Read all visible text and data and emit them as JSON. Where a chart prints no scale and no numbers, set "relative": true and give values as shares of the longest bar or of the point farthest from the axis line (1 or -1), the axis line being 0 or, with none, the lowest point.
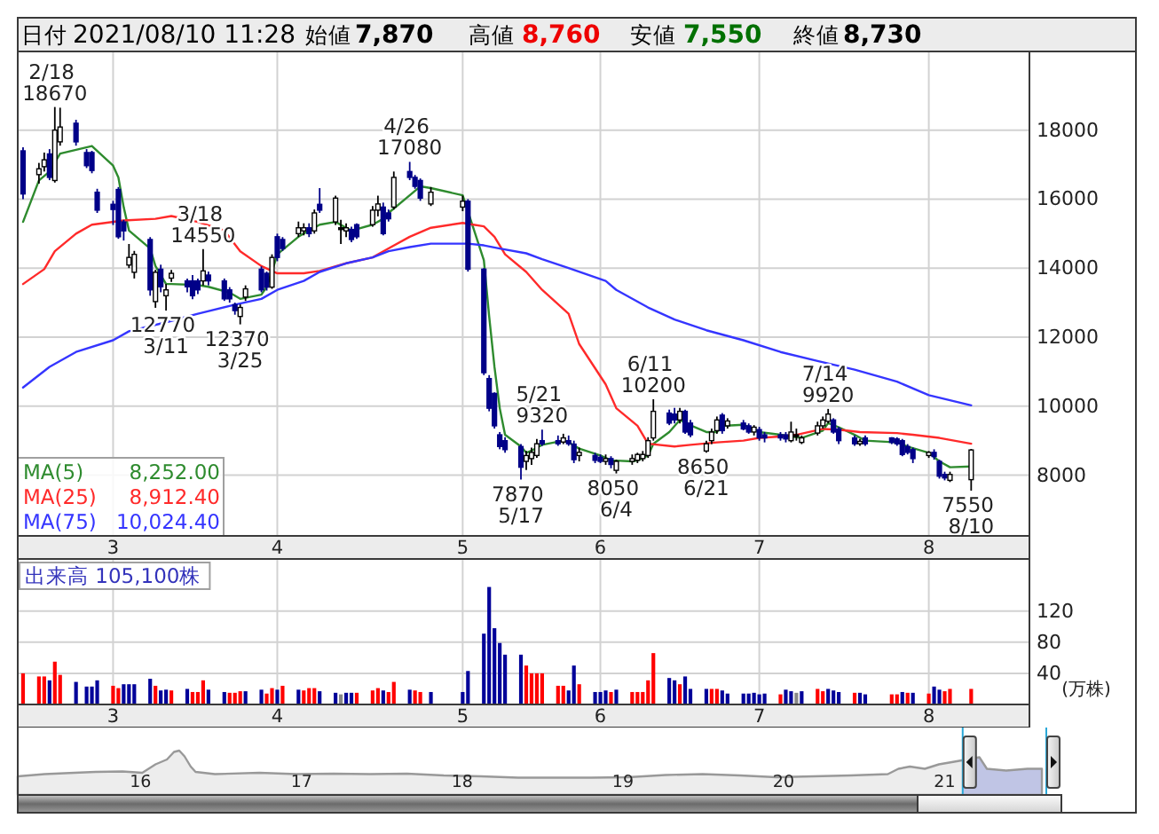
{
  "chart_data": [
    {
      "type": "other",
      "annotations": [
        "日付",
        "2021/08/10 11:28",
        "始値",
        "7,870",
        "高値",
        "8,760",
        "安値",
        "7,550",
        "終値",
        "8,730"
      ]
    },
    {
      "type": "candlestick",
      "x": [
        "2021-02-12",
        "2021-02-15",
        "2021-02-16",
        "2021-02-17",
        "2021-02-18",
        "2021-02-19",
        "2021-02-22",
        "2021-02-24",
        "2021-02-25",
        "2021-02-26",
        "2021-03-01",
        "2021-03-02",
        "2021-03-03",
        "2021-03-04",
        "2021-03-05",
        "2021-03-08",
        "2021-03-09",
        "2021-03-10",
        "2021-03-11",
        "2021-03-12",
        "2021-03-15",
        "2021-03-16",
        "2021-03-17",
        "2021-03-18",
        "2021-03-19",
        "2021-03-22",
        "2021-03-23",
        "2021-03-24",
        "2021-03-25",
        "2021-03-26",
        "2021-03-29",
        "2021-03-30",
        "2021-03-31",
        "2021-04-01",
        "2021-04-02",
        "2021-04-05",
        "2021-04-06",
        "2021-04-07",
        "2021-04-08",
        "2021-04-09",
        "2021-04-12",
        "2021-04-13",
        "2021-04-14",
        "2021-04-15",
        "2021-04-16",
        "2021-04-19",
        "2021-04-20",
        "2021-04-21",
        "2021-04-22",
        "2021-04-23",
        "2021-04-26",
        "2021-04-27",
        "2021-04-28",
        "2021-04-30",
        "2021-05-06",
        "2021-05-07",
        "2021-05-10",
        "2021-05-11",
        "2021-05-12",
        "2021-05-13",
        "2021-05-14",
        "2021-05-17",
        "2021-05-18",
        "2021-05-19",
        "2021-05-20",
        "2021-05-21",
        "2021-05-24",
        "2021-05-25",
        "2021-05-26",
        "2021-05-27",
        "2021-05-28",
        "2021-05-31",
        "2021-06-01",
        "2021-06-02",
        "2021-06-03",
        "2021-06-04",
        "2021-06-07",
        "2021-06-08",
        "2021-06-09",
        "2021-06-10",
        "2021-06-11",
        "2021-06-14",
        "2021-06-15",
        "2021-06-16",
        "2021-06-17",
        "2021-06-18",
        "2021-06-21",
        "2021-06-22",
        "2021-06-23",
        "2021-06-24",
        "2021-06-25",
        "2021-06-28",
        "2021-06-29",
        "2021-06-30",
        "2021-07-01",
        "2021-07-02",
        "2021-07-05",
        "2021-07-06",
        "2021-07-07",
        "2021-07-08",
        "2021-07-09",
        "2021-07-12",
        "2021-07-13",
        "2021-07-14",
        "2021-07-15",
        "2021-07-16",
        "2021-07-19",
        "2021-07-20",
        "2021-07-21",
        "2021-07-26",
        "2021-07-27",
        "2021-07-28",
        "2021-07-29",
        "2021-07-30",
        "2021-08-02",
        "2021-08-03",
        "2021-08-04",
        "2021-08-05",
        "2021-08-06",
        "2021-08-10"
      ],
      "ohlc": [
        [
          17400,
          17500,
          16000,
          16150
        ],
        [
          16710,
          17050,
          16450,
          16880
        ],
        [
          16940,
          17350,
          16800,
          17140
        ],
        [
          17310,
          17450,
          16550,
          16630
        ],
        [
          16540,
          18670,
          16480,
          18000
        ],
        [
          17660,
          18650,
          17550,
          18090
        ],
        [
          18200,
          18300,
          17550,
          17660
        ],
        [
          17350,
          17450,
          16900,
          16970
        ],
        [
          17350,
          17400,
          16750,
          16830
        ],
        [
          16200,
          16300,
          15600,
          15680
        ],
        [
          15850,
          15950,
          15250,
          15700
        ],
        [
          16280,
          16350,
          14850,
          14910
        ],
        [
          15340,
          15400,
          14800,
          15080
        ],
        [
          14090,
          14700,
          14000,
          14310
        ],
        [
          13880,
          14500,
          13700,
          14400
        ],
        [
          14830,
          14900,
          13200,
          13370
        ],
        [
          13030,
          13950,
          12850,
          13880
        ],
        [
          13970,
          14100,
          13300,
          13460
        ],
        [
          13200,
          13540,
          12770,
          13370
        ],
        [
          13710,
          13950,
          13600,
          13850
        ],
        [
          13630,
          13700,
          13300,
          13460
        ],
        [
          13630,
          13800,
          13100,
          13200
        ],
        [
          13630,
          13700,
          13250,
          13370
        ],
        [
          13630,
          14550,
          13500,
          13920
        ],
        [
          13800,
          13900,
          13500,
          13630
        ],
        [
          13630,
          13700,
          13050,
          13110
        ],
        [
          13370,
          13450,
          13000,
          13110
        ],
        [
          12940,
          13000,
          12650,
          12770
        ],
        [
          12600,
          12950,
          12370,
          12860
        ],
        [
          13160,
          13500,
          13050,
          13400
        ],
        [
          13970,
          14050,
          13300,
          13370
        ],
        [
          13850,
          13900,
          13350,
          13450
        ],
        [
          13450,
          14400,
          13400,
          14310
        ],
        [
          14910,
          15000,
          14200,
          14310
        ],
        [
          14830,
          14900,
          14500,
          14570
        ],
        [
          15000,
          15350,
          14900,
          15170
        ],
        [
          15080,
          15300,
          14950,
          15170
        ],
        [
          15170,
          15300,
          14900,
          15000
        ],
        [
          15080,
          15700,
          15000,
          15600
        ],
        [
          15850,
          16320,
          15600,
          15680
        ],
        [
          15340,
          16100,
          15250,
          16030
        ],
        [
          15170,
          15400,
          14700,
          15170
        ],
        [
          15080,
          15300,
          14900,
          15170
        ],
        [
          15120,
          15200,
          14750,
          14830
        ],
        [
          15260,
          15300,
          14850,
          14910
        ],
        [
          15260,
          15800,
          15200,
          15680
        ],
        [
          15680,
          16100,
          15500,
          15860
        ],
        [
          15770,
          15900,
          14950,
          15000
        ],
        [
          15600,
          15700,
          15350,
          15430
        ],
        [
          15770,
          16800,
          15700,
          16630
        ],
        [
          16800,
          17080,
          16550,
          16630
        ],
        [
          16630,
          16700,
          16300,
          16370
        ],
        [
          16540,
          16600,
          15950,
          16030
        ],
        [
          15860,
          16350,
          15800,
          16200
        ],
        [
          15770,
          16100,
          15650,
          15940
        ],
        [
          15940,
          16000,
          13900,
          13970
        ],
        [
          13970,
          14000,
          10900,
          10970
        ],
        [
          10800,
          10900,
          9850,
          9940
        ],
        [
          10370,
          10400,
          9350,
          9430
        ],
        [
          9170,
          9250,
          8750,
          8830
        ],
        [
          9000,
          9100,
          8650,
          8740
        ],
        [
          8830,
          8900,
          7870,
          8230
        ],
        [
          8400,
          8700,
          8150,
          8570
        ],
        [
          8480,
          8800,
          8300,
          8660
        ],
        [
          8570,
          9050,
          8500,
          8910
        ],
        [
          9000,
          9320,
          8850,
          8910
        ],
        [
          9000,
          9150,
          8850,
          8910
        ],
        [
          8960,
          9200,
          8900,
          9080
        ],
        [
          9000,
          9150,
          8850,
          8910
        ],
        [
          8900,
          9000,
          8350,
          8450
        ],
        [
          8570,
          8800,
          8400,
          8660
        ],
        [
          8570,
          8650,
          8350,
          8430
        ],
        [
          8520,
          8600,
          8350,
          8400
        ],
        [
          8400,
          8600,
          8300,
          8480
        ],
        [
          8480,
          8550,
          8200,
          8310
        ],
        [
          8140,
          8450,
          8050,
          8400
        ],
        [
          8400,
          8600,
          8300,
          8480
        ],
        [
          8430,
          8650,
          8350,
          8600
        ],
        [
          8480,
          8700,
          8400,
          8600
        ],
        [
          8570,
          9100,
          8500,
          9000
        ],
        [
          9080,
          10200,
          9000,
          9850
        ],
        [
          9800,
          9900,
          9450,
          9510
        ],
        [
          9770,
          9950,
          9500,
          9600
        ],
        [
          9600,
          9950,
          9500,
          9850
        ],
        [
          9850,
          9900,
          9200,
          9250
        ],
        [
          9510,
          9600,
          9100,
          9170
        ],
        [
          8700,
          9000,
          8650,
          8910
        ],
        [
          9000,
          9350,
          8900,
          9250
        ],
        [
          9290,
          9700,
          9200,
          9600
        ],
        [
          9740,
          9800,
          9200,
          9290
        ],
        [
          9430,
          9650,
          9350,
          9570
        ],
        [
          9510,
          9600,
          9300,
          9340
        ],
        [
          9430,
          9500,
          9200,
          9250
        ],
        [
          9250,
          9450,
          9150,
          9390
        ],
        [
          9320,
          9400,
          9000,
          9080
        ],
        [
          9170,
          9250,
          8950,
          9080
        ],
        [
          9170,
          9250,
          9000,
          9080
        ],
        [
          9170,
          9250,
          8950,
          9050
        ],
        [
          9000,
          9550,
          8950,
          9250
        ],
        [
          9170,
          9350,
          9000,
          9170
        ],
        [
          8950,
          9150,
          8900,
          9080
        ],
        [
          9220,
          9550,
          9150,
          9430
        ],
        [
          9430,
          9700,
          9350,
          9600
        ],
        [
          9560,
          9920,
          9500,
          9770
        ],
        [
          9600,
          9650,
          9200,
          9250
        ],
        [
          9340,
          9400,
          8900,
          9000
        ],
        [
          9080,
          9150,
          8850,
          8910
        ],
        [
          8910,
          9050,
          8850,
          8980
        ],
        [
          9080,
          9150,
          8850,
          8910
        ],
        [
          9080,
          9100,
          8900,
          8950
        ],
        [
          9050,
          9100,
          8850,
          8910
        ],
        [
          9000,
          9050,
          8550,
          8600
        ],
        [
          8830,
          8900,
          8600,
          8660
        ],
        [
          8740,
          8800,
          8350,
          8480
        ],
        [
          8570,
          8700,
          8500,
          8660
        ],
        [
          8660,
          8750,
          8450,
          8540
        ],
        [
          8400,
          8450,
          7900,
          7970
        ],
        [
          8020,
          8100,
          7850,
          7920
        ],
        [
          7850,
          8100,
          7800,
          8020
        ],
        [
          7870,
          8760,
          7550,
          8730
        ]
      ],
      "series": [
        {
          "name": "MA(5) 8,252.00",
          "type": "line",
          "color": "#2e8b2e",
          "x": [
            "2021-02-12",
            "2021-02-15",
            "2021-02-17",
            "2021-02-19",
            "2021-02-25",
            "2021-03-01",
            "2021-03-02",
            "2021-03-03",
            "2021-03-04",
            "2021-03-08",
            "2021-03-09",
            "2021-03-11",
            "2021-03-12",
            "2021-03-17",
            "2021-03-19",
            "2021-03-23",
            "2021-03-25",
            "2021-03-29",
            "2021-03-30",
            "2021-03-31",
            "2021-04-01",
            "2021-04-05",
            "2021-04-07",
            "2021-04-09",
            "2021-04-12",
            "2021-04-14",
            "2021-04-15",
            "2021-04-19",
            "2021-04-21",
            "2021-04-22",
            "2021-04-26",
            "2021-04-28",
            "2021-04-30",
            "2021-05-06",
            "2021-05-10",
            "2021-05-11",
            "2021-05-12",
            "2021-05-13",
            "2021-05-14",
            "2021-05-17",
            "2021-05-18",
            "2021-05-19",
            "2021-05-21",
            "2021-05-25",
            "2021-05-26",
            "2021-05-28",
            "2021-06-01",
            "2021-06-03",
            "2021-06-07",
            "2021-06-08",
            "2021-06-10",
            "2021-06-11",
            "2021-06-14",
            "2021-06-16",
            "2021-06-17",
            "2021-06-21",
            "2021-06-23",
            "2021-06-24",
            "2021-06-28",
            "2021-06-30",
            "2021-07-01",
            "2021-07-05",
            "2021-07-07",
            "2021-07-09",
            "2021-07-13",
            "2021-07-14",
            "2021-07-16",
            "2021-07-19",
            "2021-07-21",
            "2021-07-27",
            "2021-07-29",
            "2021-08-02",
            "2021-08-04",
            "2021-08-06",
            "2021-08-10"
          ],
          "values": [
            15340,
            16540,
            16800,
            17320,
            17540,
            16970,
            16630,
            15770,
            15090,
            14570,
            14060,
            13540,
            13540,
            13510,
            13460,
            13290,
            13110,
            13230,
            13460,
            13890,
            14400,
            14910,
            15090,
            15260,
            15340,
            15170,
            15090,
            15260,
            15430,
            15600,
            16110,
            16370,
            16320,
            16110,
            14230,
            12600,
            11140,
            9940,
            9170,
            8830,
            8650,
            8710,
            8880,
            9000,
            8950,
            8770,
            8570,
            8430,
            8400,
            8430,
            8570,
            8910,
            9250,
            9600,
            9510,
            9250,
            9250,
            9430,
            9460,
            9340,
            9250,
            9170,
            9120,
            9080,
            9290,
            9510,
            9390,
            9170,
            9000,
            8950,
            8830,
            8650,
            8400,
            8230,
            8252
          ]
        },
        {
          "name": "MA(25) 8,912.40",
          "type": "line",
          "color": "#ff2a2a",
          "x": [
            "2021-02-12",
            "2021-02-16",
            "2021-02-18",
            "2021-02-22",
            "2021-02-25",
            "2021-03-03",
            "2021-03-09",
            "2021-03-12",
            "2021-03-17",
            "2021-03-22",
            "2021-03-25",
            "2021-03-29",
            "2021-04-01",
            "2021-04-06",
            "2021-04-09",
            "2021-04-14",
            "2021-04-19",
            "2021-04-22",
            "2021-04-26",
            "2021-04-30",
            "2021-05-06",
            "2021-05-10",
            "2021-05-12",
            "2021-05-14",
            "2021-05-18",
            "2021-05-21",
            "2021-05-26",
            "2021-05-28",
            "2021-06-02",
            "2021-06-04",
            "2021-06-08",
            "2021-06-10",
            "2021-06-15",
            "2021-06-18",
            "2021-06-23",
            "2021-06-28",
            "2021-07-01",
            "2021-07-05",
            "2021-07-08",
            "2021-07-13",
            "2021-07-16",
            "2021-07-20",
            "2021-07-27",
            "2021-07-30",
            "2021-08-04",
            "2021-08-10"
          ],
          "values": [
            13540,
            13970,
            14490,
            15000,
            15260,
            15380,
            15430,
            15510,
            15340,
            15090,
            14490,
            14060,
            13850,
            13850,
            13920,
            14140,
            14310,
            14570,
            14910,
            15170,
            15310,
            15210,
            14910,
            14400,
            13890,
            13370,
            12680,
            11800,
            10630,
            9940,
            9430,
            8910,
            8830,
            8880,
            8950,
            9000,
            9080,
            9120,
            9170,
            9340,
            9320,
            9250,
            9220,
            9170,
            9080,
            8912.4
          ]
        },
        {
          "name": "MA(75) 10,024.40",
          "type": "line",
          "color": "#3535ff",
          "x": [
            "2021-02-12",
            "2021-02-17",
            "2021-02-22",
            "2021-03-01",
            "2021-03-04",
            "2021-03-11",
            "2021-03-17",
            "2021-03-24",
            "2021-03-29",
            "2021-04-01",
            "2021-04-06",
            "2021-04-09",
            "2021-04-14",
            "2021-04-19",
            "2021-04-22",
            "2021-04-26",
            "2021-04-30",
            "2021-05-07",
            "2021-05-10",
            "2021-05-13",
            "2021-05-18",
            "2021-05-21",
            "2021-05-26",
            "2021-06-02",
            "2021-06-04",
            "2021-06-10",
            "2021-06-15",
            "2021-06-21",
            "2021-06-28",
            "2021-07-05",
            "2021-07-12",
            "2021-07-19",
            "2021-07-27",
            "2021-08-02",
            "2021-08-10"
          ],
          "values": [
            10540,
            11140,
            11570,
            11910,
            12170,
            12430,
            12680,
            12940,
            13110,
            13370,
            13630,
            13890,
            14140,
            14310,
            14490,
            14610,
            14710,
            14710,
            14660,
            14570,
            14430,
            14260,
            14000,
            13630,
            13370,
            12860,
            12510,
            12200,
            11910,
            11570,
            11310,
            11060,
            10710,
            10320,
            10024.4
          ]
        }
      ],
      "annotations": [
        {
          "text": "2/18\n18670",
          "x": "2021-02-18",
          "y": 18670
        },
        {
          "text": "12770\n3/11",
          "x": "2021-03-11",
          "y": 12770
        },
        {
          "text": "3/18\n14550",
          "x": "2021-03-18",
          "y": 14550
        },
        {
          "text": "12370\n3/25",
          "x": "2021-03-25",
          "y": 12370
        },
        {
          "text": "4/26\n17080",
          "x": "2021-04-26",
          "y": 17080
        },
        {
          "text": "7870\n5/17",
          "x": "2021-05-17",
          "y": 7870
        },
        {
          "text": "5/21\n9320",
          "x": "2021-05-21",
          "y": 9320
        },
        {
          "text": "8050\n6/4",
          "x": "2021-06-04",
          "y": 8050
        },
        {
          "text": "6/11\n10200",
          "x": "2021-06-11",
          "y": 10200
        },
        {
          "text": "8650\n6/21",
          "x": "2021-06-21",
          "y": 8650
        },
        {
          "text": "7/14\n9920",
          "x": "2021-07-14",
          "y": 9920
        },
        {
          "text": "7550\n8/10",
          "x": "2021-08-10",
          "y": 7550
        }
      ],
      "xlim": [
        "2021-02-11",
        "2021-08-21"
      ],
      "xticks": [
        {
          "value": "2021-03-01",
          "label": "3"
        },
        {
          "value": "2021-04-01",
          "label": "4"
        },
        {
          "value": "2021-05-06",
          "label": "5"
        },
        {
          "value": "2021-06-01",
          "label": "6"
        },
        {
          "value": "2021-07-01",
          "label": "7"
        },
        {
          "value": "2021-08-02",
          "label": "8"
        }
      ],
      "ylim": [
        6240,
        20280
      ],
      "yticks": [
        8000,
        10000,
        12000,
        14000,
        16000,
        18000
      ],
      "grid": true,
      "legend": "bottom left"
    },
    {
      "type": "bar",
      "title": "出来高 105,100株",
      "ylabel": "(万株)",
      "x": [
        "2021-02-12",
        "2021-02-15",
        "2021-02-16",
        "2021-02-17",
        "2021-02-18",
        "2021-02-19",
        "2021-02-22",
        "2021-02-24",
        "2021-02-25",
        "2021-02-26",
        "2021-03-01",
        "2021-03-02",
        "2021-03-03",
        "2021-03-04",
        "2021-03-05",
        "2021-03-08",
        "2021-03-09",
        "2021-03-10",
        "2021-03-11",
        "2021-03-12",
        "2021-03-15",
        "2021-03-16",
        "2021-03-17",
        "2021-03-18",
        "2021-03-19",
        "2021-03-22",
        "2021-03-23",
        "2021-03-24",
        "2021-03-25",
        "2021-03-26",
        "2021-03-29",
        "2021-03-30",
        "2021-03-31",
        "2021-04-01",
        "2021-04-02",
        "2021-04-05",
        "2021-04-06",
        "2021-04-07",
        "2021-04-08",
        "2021-04-09",
        "2021-04-12",
        "2021-04-13",
        "2021-04-14",
        "2021-04-15",
        "2021-04-16",
        "2021-04-19",
        "2021-04-20",
        "2021-04-21",
        "2021-04-22",
        "2021-04-23",
        "2021-04-26",
        "2021-04-27",
        "2021-04-28",
        "2021-04-30",
        "2021-05-06",
        "2021-05-07",
        "2021-05-10",
        "2021-05-11",
        "2021-05-12",
        "2021-05-13",
        "2021-05-14",
        "2021-05-17",
        "2021-05-18",
        "2021-05-19",
        "2021-05-20",
        "2021-05-21",
        "2021-05-24",
        "2021-05-25",
        "2021-05-26",
        "2021-05-27",
        "2021-05-28",
        "2021-05-31",
        "2021-06-01",
        "2021-06-02",
        "2021-06-03",
        "2021-06-04",
        "2021-06-07",
        "2021-06-08",
        "2021-06-09",
        "2021-06-10",
        "2021-06-11",
        "2021-06-14",
        "2021-06-15",
        "2021-06-16",
        "2021-06-17",
        "2021-06-18",
        "2021-06-21",
        "2021-06-22",
        "2021-06-23",
        "2021-06-24",
        "2021-06-25",
        "2021-06-28",
        "2021-06-29",
        "2021-06-30",
        "2021-07-01",
        "2021-07-02",
        "2021-07-05",
        "2021-07-06",
        "2021-07-07",
        "2021-07-08",
        "2021-07-09",
        "2021-07-12",
        "2021-07-13",
        "2021-07-14",
        "2021-07-15",
        "2021-07-16",
        "2021-07-19",
        "2021-07-20",
        "2021-07-21",
        "2021-07-26",
        "2021-07-27",
        "2021-07-28",
        "2021-07-29",
        "2021-07-30",
        "2021-08-02",
        "2021-08-03",
        "2021-08-04",
        "2021-08-05",
        "2021-08-06",
        "2021-08-10"
      ],
      "values": [
        40,
        36,
        36,
        31,
        55,
        38,
        29,
        23,
        23,
        31,
        24,
        21,
        26,
        26,
        26,
        33,
        24,
        18,
        19,
        18,
        20,
        16,
        16,
        31,
        19,
        16,
        15,
        15,
        17,
        17,
        19,
        14,
        21,
        19,
        24,
        19,
        18,
        21,
        21,
        17,
        15,
        13,
        15,
        15,
        15,
        18,
        21,
        18,
        16,
        29,
        19,
        18,
        16,
        16,
        16,
        43,
        91,
        151,
        98,
        79,
        64,
        64,
        50,
        40,
        40,
        40,
        24,
        24,
        18,
        50,
        26,
        16,
        16,
        18,
        16,
        19,
        16,
        16,
        16,
        31,
        66,
        34,
        31,
        26,
        36,
        20,
        20,
        20,
        20,
        18,
        14,
        14,
        14,
        15,
        13,
        14,
        13,
        19,
        17,
        15,
        17,
        20,
        17,
        20,
        18,
        16,
        15,
        15,
        13,
        13,
        13,
        16,
        15,
        15,
        14,
        23,
        19,
        17,
        20,
        20
      ],
      "colors": [
        "#ff0000",
        "#ff0000",
        "#ff0000",
        "#000099",
        "#ff0000",
        "#ff0000",
        "#000099",
        "#000099",
        "#000099",
        "#000099",
        "#ff0000",
        "#ff0000",
        "#000099",
        "#000099",
        "#000099",
        "#000099",
        "#ff0000",
        "#000099",
        "#000099",
        "#ff0000",
        "#000099",
        "#ff0000",
        "#ff0000",
        "#ff0000",
        "#000099",
        "#000099",
        "#ff0000",
        "#ff0000",
        "#ff0000",
        "#000099",
        "#000099",
        "#ff0000",
        "#ff0000",
        "#000099",
        "#ff0000",
        "#000099",
        "#ff0000",
        "#ff0000",
        "#ff0000",
        "#000099",
        "#000099",
        "#888888",
        "#000099",
        "#000099",
        "#ff0000",
        "#ff0000",
        "#ff0000",
        "#000099",
        "#ff0000",
        "#ff0000",
        "#000099",
        "#ff0000",
        "#ff0000",
        "#000099",
        "#000099",
        "#000099",
        "#000099",
        "#000099",
        "#000099",
        "#000099",
        "#000099",
        "#000099",
        "#ff0000",
        "#ff0000",
        "#ff0000",
        "#ff0000",
        "#ff0000",
        "#ff0000",
        "#000099",
        "#000099",
        "#ff0000",
        "#000099",
        "#000099",
        "#000099",
        "#ff0000",
        "#000099",
        "#ff0000",
        "#ff0000",
        "#ff0000",
        "#ff0000",
        "#ff0000",
        "#000099",
        "#000099",
        "#ff0000",
        "#000099",
        "#000099",
        "#000099",
        "#ff0000",
        "#ff0000",
        "#000099",
        "#000099",
        "#000099",
        "#000099",
        "#000099",
        "#000099",
        "#000099",
        "#ff0000",
        "#000099",
        "#000099",
        "#888888",
        "#000099",
        "#ff0000",
        "#ff0000",
        "#000099",
        "#000099",
        "#000099",
        "#ff0000",
        "#000099",
        "#000099",
        "#ff0000",
        "#ff0000",
        "#000099",
        "#ff0000",
        "#000099",
        "#ff0000",
        "#000099",
        "#000099",
        "#ff0000",
        "#ff0000",
        "#ff0000"
      ],
      "xlim": [
        "2021-02-11",
        "2021-08-21"
      ],
      "xticks": [
        {
          "value": "2021-03-01",
          "label": "3"
        },
        {
          "value": "2021-04-01",
          "label": "4"
        },
        {
          "value": "2021-05-06",
          "label": "5"
        },
        {
          "value": "2021-06-01",
          "label": "6"
        },
        {
          "value": "2021-07-01",
          "label": "7"
        },
        {
          "value": "2021-08-02",
          "label": "8"
        }
      ],
      "ylim": [
        0,
        187
      ],
      "yticks": [
        40,
        80,
        120
      ],
      "grid": true
    },
    {
      "type": "area",
      "relative": true,
      "color": "#999999",
      "x": [
        "2015-03-28",
        "2015-05-28",
        "2015-08-04",
        "2015-09-21",
        "2015-11-21",
        "2016-01-05",
        "2016-02-04",
        "2016-03-01",
        "2016-03-17",
        "2016-03-29",
        "2016-04-10",
        "2016-04-24",
        "2016-05-05",
        "2016-06-18",
        "2016-09-27",
        "2016-12-20",
        "2017-03-14",
        "2017-06-05",
        "2017-08-28",
        "2017-11-20",
        "2018-02-13",
        "2018-05-08",
        "2018-07-30",
        "2018-10-21",
        "2019-01-13",
        "2019-04-08",
        "2019-07-01",
        "2019-09-24",
        "2019-12-16",
        "2020-03-08",
        "2020-06-01",
        "2020-08-25",
        "2020-09-18",
        "2020-10-14",
        "2020-11-17",
        "2020-12-19",
        "2021-01-23",
        "2021-03-21",
        "2021-04-07",
        "2021-05-21",
        "2021-07-08",
        "2021-08-10"
      ],
      "values": [
        0.42,
        0.47,
        0.5,
        0.52,
        0.53,
        0.5,
        0.69,
        0.8,
        0.97,
        1,
        0.87,
        0.64,
        0.52,
        0.47,
        0.5,
        0.47,
        0.48,
        0.47,
        0.48,
        0.44,
        0.42,
        0.39,
        0.39,
        0.39,
        0.4,
        0.45,
        0.47,
        0.44,
        0.4,
        0.42,
        0.44,
        0.47,
        0.59,
        0.64,
        0.59,
        0.69,
        0.75,
        0.85,
        0.59,
        0.55,
        0.59,
        0.59
      ],
      "xlim": [
        "2015-03-28",
        "2021-08-22"
      ],
      "xticks": [
        {
          "value": "2016-01-01",
          "label": "16"
        },
        {
          "value": "2017-01-01",
          "label": "17"
        },
        {
          "value": "2018-01-01",
          "label": "18"
        },
        {
          "value": "2019-01-01",
          "label": "19"
        },
        {
          "value": "2020-01-01",
          "label": "20"
        },
        {
          "value": "2021-01-01",
          "label": "21"
        }
      ],
      "bands": [
        {
          "axis": "x",
          "from": "2021-02-11",
          "to": "2021-08-20",
          "color": "#c8cff6"
        }
      ]
    }
  ]
}
